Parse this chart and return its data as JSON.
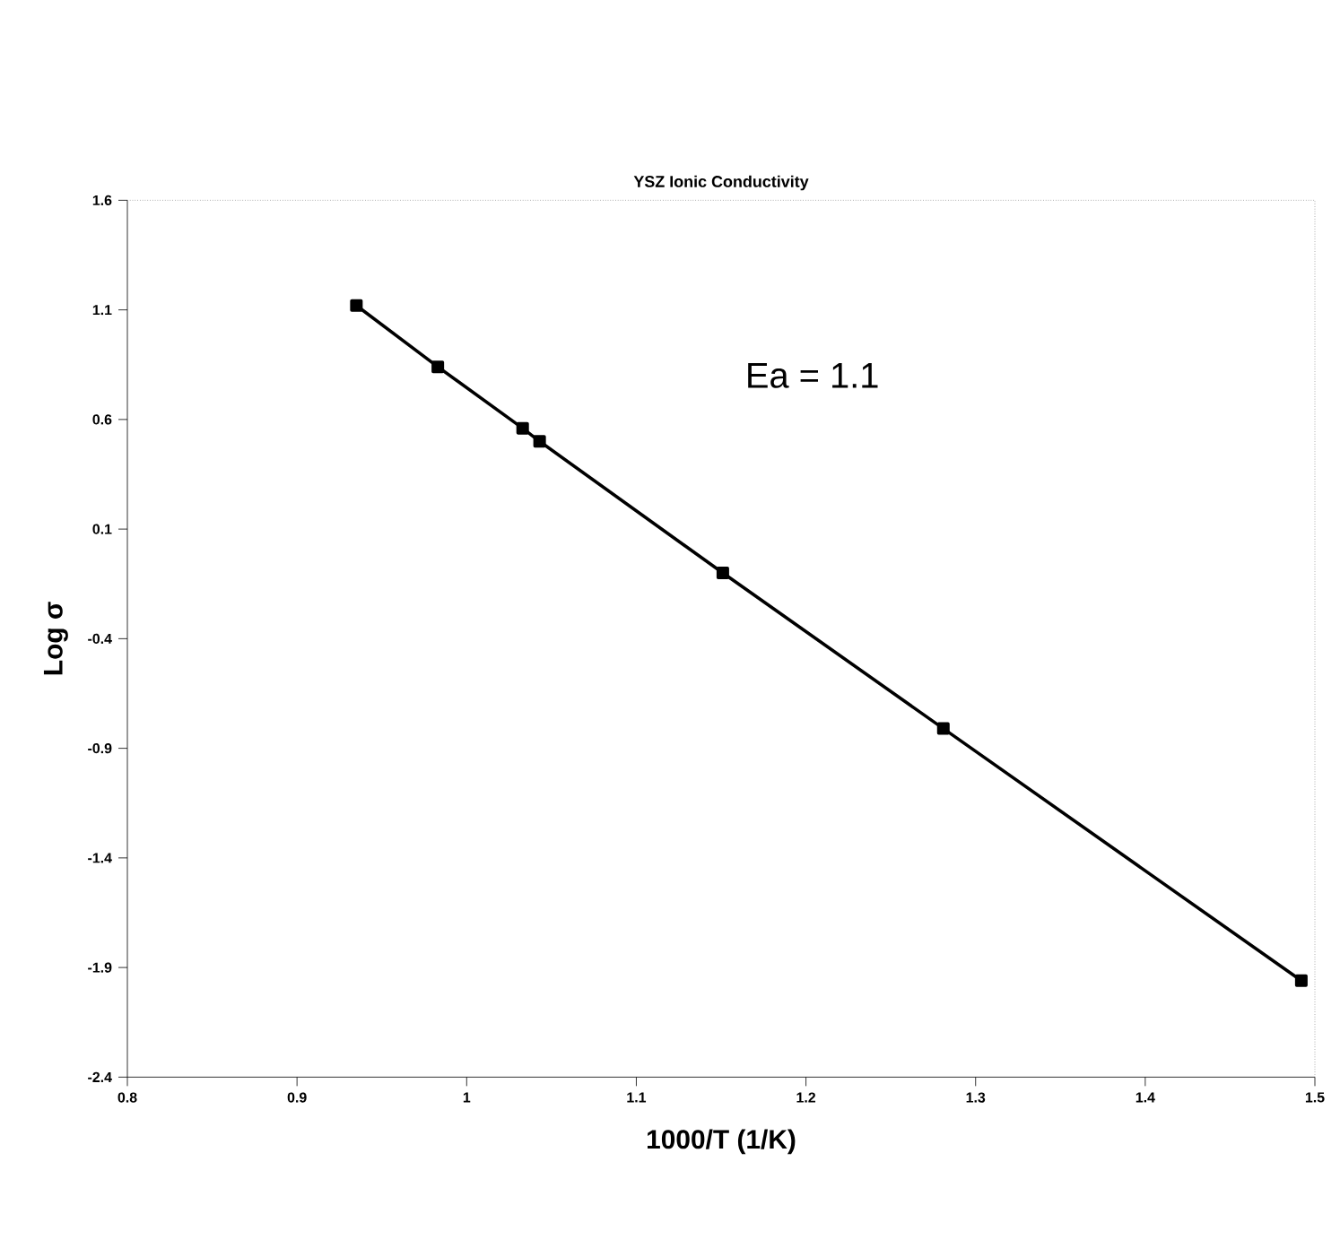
{
  "chart_data": {
    "type": "line",
    "title": "YSZ Ionic Conductivity",
    "xlabel": "1000/T (1/K)",
    "ylabel": "Log σ",
    "x": [
      0.935,
      0.983,
      1.033,
      1.043,
      1.151,
      1.281,
      1.492
    ],
    "series": [
      {
        "color": "#000000",
        "values": [
          1.12,
          0.84,
          0.56,
          0.5,
          -0.1,
          -0.81,
          -1.96
        ]
      }
    ],
    "xlim": [
      0.8,
      1.5
    ],
    "xticks": [
      0.8,
      0.9,
      1,
      1.1,
      1.2,
      1.3,
      1.4,
      1.5
    ],
    "ylim": [
      -2.4,
      1.6
    ],
    "yticks": [
      1.6,
      1.1,
      0.6,
      0.1,
      -0.4,
      -0.9,
      -1.4,
      -1.9,
      -2.4
    ],
    "annotations": [
      "Ea = 1.1"
    ],
    "marker": "square",
    "line_style": "solid",
    "grid": false
  }
}
